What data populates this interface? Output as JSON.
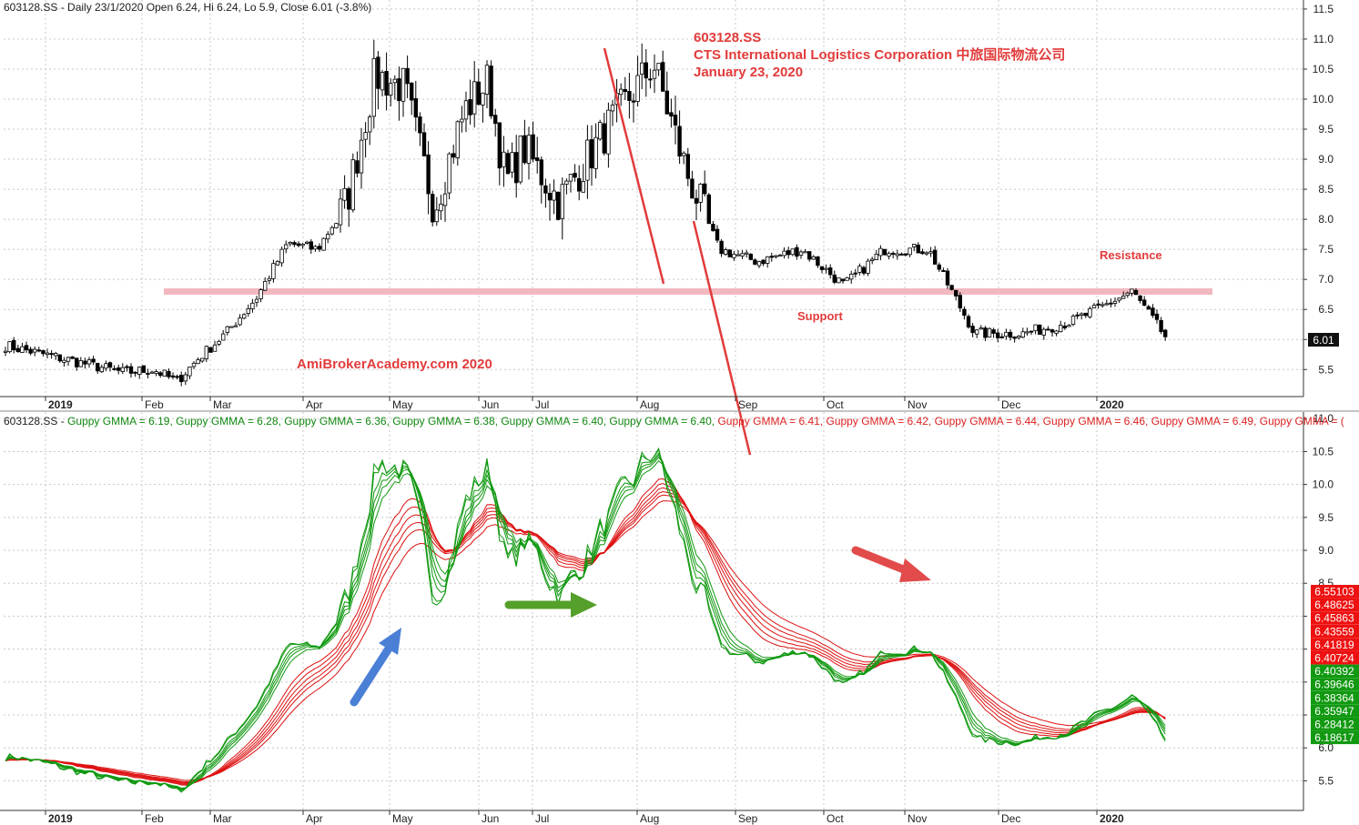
{
  "header": {
    "top_info": "603128.SS - Daily 23/1/2020 Open 6.24, Hi 6.24, Lo 5.9, Close 6.01 (-3.8%)",
    "gmma_prefix": "603128.SS - ",
    "gmma_items": [
      {
        "text": "Guppy GMMA = 6.19,",
        "color": "#118811"
      },
      {
        "text": "Guppy GMMA = 6.28,",
        "color": "#118811"
      },
      {
        "text": "Guppy GMMA = 6.36,",
        "color": "#118811"
      },
      {
        "text": "Guppy GMMA = 6.38,",
        "color": "#118811"
      },
      {
        "text": "Guppy GMMA = 6.40,",
        "color": "#118811"
      },
      {
        "text": "Guppy GMMA = 6.40,",
        "color": "#118811"
      },
      {
        "text": "Guppy GMMA = 6.41,",
        "color": "#dd2222"
      },
      {
        "text": "Guppy GMMA = 6.42,",
        "color": "#dd2222"
      },
      {
        "text": "Guppy GMMA = 6.44,",
        "color": "#dd2222"
      },
      {
        "text": "Guppy GMMA = 6.46,",
        "color": "#dd2222"
      },
      {
        "text": "Guppy GMMA = 6.49,",
        "color": "#dd2222"
      },
      {
        "text": "Guppy GMMA = (",
        "color": "#dd2222"
      }
    ]
  },
  "annotations": {
    "ticker": "603128.SS",
    "company": "CTS International Logistics Corporation   中旅国际物流公司",
    "date": "January 23, 2020",
    "watermark": "AmiBrokerAcademy.com   2020",
    "support": "Support",
    "resistance": "Resistance"
  },
  "colors": {
    "annotation_red": "#e23b3b",
    "support_band": "#f2b8c0",
    "short_gmma": "#119911",
    "long_gmma": "#dd1111",
    "arrow_blue": "#4a7fd6",
    "arrow_green": "#55a02a",
    "arrow_red": "#e24b4b"
  },
  "chart_data": [
    {
      "type": "candlestick",
      "title": "603128.SS - Daily 23/1/2020 Open 6.24, Hi 6.24, Lo 5.9, Close 6.01 (-3.8%)",
      "x_tick_labels": [
        "2019",
        "Feb",
        "Mar",
        "Apr",
        "May",
        "Jun",
        "Jul",
        "Aug",
        "Sep",
        "Oct",
        "Nov",
        "Dec",
        "2020"
      ],
      "y_ticks": [
        5.5,
        6.0,
        6.5,
        7.0,
        7.5,
        8.0,
        8.5,
        9.0,
        9.5,
        10.0,
        10.5,
        11.0,
        11.5
      ],
      "ylim": [
        5.05,
        11.65
      ],
      "last_close_label": "6.01",
      "support_resistance_level": 6.8,
      "close_path": [
        {
          "month": "2019",
          "close": 5.9
        },
        {
          "month": "2019",
          "close": 5.45
        },
        {
          "month": "Feb",
          "close": 5.5
        },
        {
          "month": "Feb",
          "close": 5.3
        },
        {
          "month": "Feb",
          "close": 5.7
        },
        {
          "month": "Mar",
          "close": 6.1
        },
        {
          "month": "Mar",
          "close": 6.7
        },
        {
          "month": "Mar",
          "close": 7.6
        },
        {
          "month": "Apr",
          "close": 7.5
        },
        {
          "month": "Apr",
          "close": 8.3
        },
        {
          "month": "Apr",
          "close": 10.4
        },
        {
          "month": "May",
          "close": 10.2
        },
        {
          "month": "May",
          "close": 8.2
        },
        {
          "month": "May",
          "close": 9.8
        },
        {
          "month": "Jun",
          "close": 10.3
        },
        {
          "month": "Jun",
          "close": 8.6
        },
        {
          "month": "Jun",
          "close": 9.2
        },
        {
          "month": "Jul",
          "close": 8.3
        },
        {
          "month": "Jul",
          "close": 9.6
        },
        {
          "month": "Aug",
          "close": 10.6
        },
        {
          "month": "Aug",
          "close": 8.8
        },
        {
          "month": "Aug",
          "close": 7.5
        },
        {
          "month": "Sep",
          "close": 7.3
        },
        {
          "month": "Sep",
          "close": 7.5
        },
        {
          "month": "Oct",
          "close": 6.9
        },
        {
          "month": "Oct",
          "close": 7.5
        },
        {
          "month": "Nov",
          "close": 7.5
        },
        {
          "month": "Nov",
          "close": 6.1
        },
        {
          "month": "Dec",
          "close": 6.1
        },
        {
          "month": "Dec",
          "close": 6.3
        },
        {
          "month": "2020",
          "close": 6.6
        },
        {
          "month": "2020",
          "close": 6.8
        },
        {
          "month": "2020",
          "close": 6.01
        }
      ]
    },
    {
      "type": "line",
      "title": "Guppy GMMA",
      "x_tick_labels": [
        "2019",
        "Feb",
        "Mar",
        "Apr",
        "May",
        "Jun",
        "Jul",
        "Aug",
        "Sep",
        "Oct",
        "Nov",
        "Dec",
        "2020"
      ],
      "y_ticks": [
        5.5,
        6.0,
        6.5,
        7.0,
        7.5,
        8.0,
        8.5,
        9.0,
        9.5,
        10.0,
        10.5,
        11.0
      ],
      "ylim": [
        5.05,
        11.1
      ],
      "last_value_labels": {
        "long": [
          "6.55103",
          "6.48625",
          "6.45863",
          "6.43559",
          "6.41819",
          "6.40724"
        ],
        "short": [
          "6.40392",
          "6.39646",
          "6.38364",
          "6.35947",
          "6.28412",
          "6.18617"
        ]
      },
      "series": [
        {
          "group": "short",
          "periods": [
            3,
            5,
            8,
            10,
            12,
            15
          ]
        },
        {
          "group": "long",
          "periods": [
            30,
            35,
            40,
            45,
            50,
            60
          ]
        }
      ]
    }
  ]
}
